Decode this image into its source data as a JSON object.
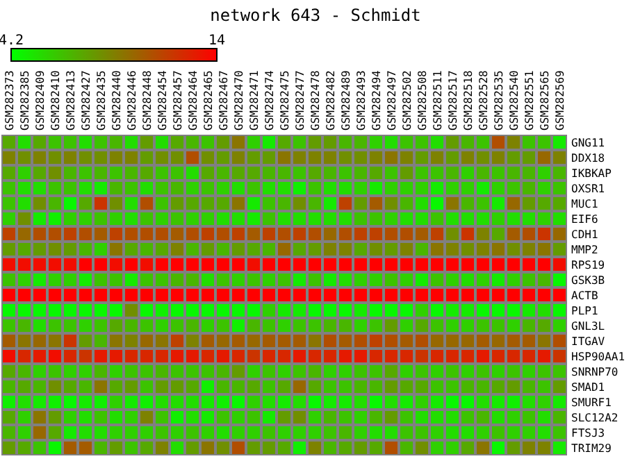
{
  "chart_data": {
    "type": "heatmap",
    "title": "network 643 - Schmidt",
    "categories": [
      "GSM282373",
      "GSM282385",
      "GSM282409",
      "GSM282410",
      "GSM282413",
      "GSM282427",
      "GSM282435",
      "GSM282440",
      "GSM282446",
      "GSM282448",
      "GSM282454",
      "GSM282457",
      "GSM282464",
      "GSM282465",
      "GSM282467",
      "GSM282470",
      "GSM282471",
      "GSM282474",
      "GSM282475",
      "GSM282477",
      "GSM282478",
      "GSM282482",
      "GSM282489",
      "GSM282493",
      "GSM282494",
      "GSM282497",
      "GSM282502",
      "GSM282508",
      "GSM282511",
      "GSM282517",
      "GSM282518",
      "GSM282528",
      "GSM282535",
      "GSM282540",
      "GSM282551",
      "GSM282565",
      "GSM282569"
    ],
    "y_categories": [
      "GNG11",
      "DDX18",
      "IKBKAP",
      "OXSR1",
      "MUC1",
      "EIF6",
      "CDH1",
      "MMP2",
      "RPS19",
      "GSK3B",
      "ACTB",
      "PLP1",
      "GNL3L",
      "ITGAV",
      "HSP90AA1",
      "SNRNP70",
      "SMAD1",
      "SMURF1",
      "SLC12A2",
      "FTSJ3",
      "TRIM29"
    ],
    "cells": [
      [
        7.5,
        5.5,
        7.5,
        6.5,
        6.5,
        5.5,
        6.5,
        7,
        5.5,
        8,
        5.5,
        7.5,
        7,
        6.5,
        8,
        9.5,
        6,
        5,
        7.5,
        6.5,
        8,
        8,
        7,
        7,
        6,
        5.5,
        6.5,
        6.5,
        5.5,
        8,
        7,
        6.5,
        11,
        9,
        6.5,
        6.5,
        5
      ],
      [
        9,
        8.5,
        9,
        8.5,
        9,
        8.5,
        8.5,
        9,
        9,
        8,
        8.5,
        8.5,
        11,
        8.5,
        8,
        9,
        8,
        8,
        9.5,
        9,
        9,
        9,
        8.5,
        8.5,
        9,
        9.5,
        9,
        8,
        9,
        8,
        9,
        8.5,
        9,
        8,
        8,
        10,
        9
      ],
      [
        7.5,
        6,
        7.5,
        8.5,
        7,
        6.5,
        7,
        6.5,
        7,
        7.5,
        6.5,
        6.5,
        5.5,
        7.5,
        7,
        7.5,
        7.5,
        7,
        7,
        6.5,
        7.5,
        7,
        6.5,
        7,
        7.5,
        6.5,
        8,
        6.5,
        6.5,
        7,
        6,
        7,
        6.5,
        7,
        7,
        6,
        7
      ],
      [
        6.5,
        5.5,
        5.5,
        6.5,
        6.5,
        5.5,
        5,
        7,
        6.5,
        5.5,
        6.5,
        7,
        6,
        6.5,
        6,
        5.5,
        6.5,
        5.5,
        5.5,
        4.8,
        6.5,
        5.5,
        5.5,
        6,
        5,
        6,
        6,
        6,
        5,
        6,
        6,
        5,
        6,
        6.5,
        7,
        6,
        6.5
      ],
      [
        6.5,
        5.5,
        8.5,
        7,
        4.5,
        7.5,
        12,
        8.5,
        5.5,
        11,
        6.5,
        8,
        7.5,
        7.5,
        7.5,
        9.5,
        5,
        6.5,
        7,
        8.5,
        7,
        5,
        11.5,
        8,
        10.5,
        8.5,
        7,
        5.5,
        4.5,
        9.5,
        7,
        6.5,
        5,
        10,
        8,
        7.5,
        7.5
      ],
      [
        6,
        8.5,
        5,
        4.8,
        6,
        6,
        6.5,
        6,
        5.5,
        6.5,
        6,
        6.5,
        6,
        6,
        5.5,
        5.5,
        5,
        6.5,
        5.5,
        5.5,
        5.5,
        5.5,
        5.5,
        6.5,
        6.5,
        6,
        5.5,
        5.5,
        6.5,
        5.5,
        5.5,
        5.5,
        6,
        5.5,
        5.5,
        6,
        5.5
      ],
      [
        11.5,
        10,
        11,
        11,
        11.5,
        11,
        10.5,
        11.5,
        11,
        11,
        11,
        10.5,
        11,
        11.5,
        11,
        11.5,
        10.5,
        11.5,
        11,
        11.5,
        11,
        10,
        11,
        11.5,
        11.5,
        11,
        11,
        10.5,
        11.5,
        8.5,
        12,
        9,
        7.5,
        10.5,
        11,
        12,
        10
      ],
      [
        8,
        7.5,
        8,
        8.5,
        8,
        7,
        6,
        9.5,
        7.5,
        7,
        7.5,
        9,
        7,
        8,
        7,
        8,
        7.5,
        7,
        10,
        7.5,
        8,
        9,
        9,
        7.5,
        8.5,
        8,
        9,
        7,
        9.5,
        9,
        8.5,
        9,
        9.5,
        8.5,
        9,
        9.5,
        8
      ],
      [
        13.5,
        13.5,
        13.5,
        13.5,
        13.5,
        14,
        14,
        13.5,
        14,
        13.5,
        14,
        14,
        14,
        14,
        14,
        14,
        13.5,
        14,
        14,
        14,
        14,
        14,
        14,
        14,
        14,
        14,
        14,
        14,
        14,
        14,
        14,
        14,
        14,
        14,
        14,
        14,
        13.5
      ],
      [
        6.5,
        6,
        5,
        6,
        6,
        5,
        6.5,
        6.5,
        5,
        6.5,
        6.5,
        7,
        7,
        5.5,
        6.5,
        6,
        6.5,
        6,
        6.5,
        5,
        6.5,
        5,
        5.5,
        6,
        6,
        6.5,
        6,
        5,
        6.5,
        6,
        5.5,
        6,
        5,
        6,
        6.5,
        7,
        4.5
      ],
      [
        14,
        14,
        14,
        14,
        14,
        14,
        14,
        14,
        14,
        14,
        14,
        14,
        14,
        14,
        14,
        14,
        14,
        14,
        14,
        14,
        14,
        14,
        14,
        14,
        14,
        14,
        14,
        14,
        14,
        14,
        14,
        14,
        14,
        14,
        14,
        14,
        14
      ],
      [
        4.5,
        4.5,
        4.5,
        4.5,
        4.5,
        4.5,
        4.5,
        4.5,
        8.5,
        4.5,
        4.8,
        4.5,
        4.5,
        4.5,
        4.5,
        4.5,
        4.5,
        6,
        5,
        5,
        4.5,
        4.5,
        4.5,
        5,
        4.5,
        4.5,
        4.5,
        6,
        4.5,
        5,
        5,
        4.5,
        4.5,
        4.5,
        5,
        5.5,
        4.5
      ],
      [
        6.5,
        7,
        5.5,
        6.5,
        6.5,
        6,
        6.5,
        7.5,
        7,
        6.5,
        6,
        6.5,
        7,
        6,
        6.5,
        4.8,
        7,
        6.5,
        6,
        6.5,
        6.5,
        7,
        7,
        6,
        6.5,
        8,
        6,
        7.5,
        6.5,
        6,
        6,
        6.5,
        6.5,
        6,
        7,
        7.5,
        6
      ],
      [
        10.5,
        9.5,
        10,
        9.5,
        12,
        8,
        7,
        9.5,
        9,
        10,
        9.5,
        11.5,
        9,
        10.5,
        10,
        10.5,
        10,
        10.5,
        10.5,
        10.5,
        9.5,
        11,
        10.5,
        11,
        11.5,
        11,
        10.5,
        11,
        10,
        10,
        10,
        10.5,
        10,
        10.5,
        10.5,
        9.5,
        11
      ],
      [
        13.5,
        12.5,
        13,
        13.5,
        12.5,
        12,
        13,
        13,
        12.5,
        12.5,
        12.5,
        13,
        13,
        12.5,
        13,
        12.5,
        12,
        12.5,
        12.5,
        13,
        12.5,
        12.5,
        13,
        13,
        12.5,
        12.5,
        12.5,
        12,
        12.5,
        12.5,
        12.5,
        13,
        12.5,
        12.5,
        12.5,
        13,
        12
      ],
      [
        7.5,
        7,
        6,
        6.5,
        6,
        6,
        7,
        6,
        6.5,
        6.5,
        7,
        6.5,
        6.5,
        6.5,
        7,
        8,
        6,
        6.5,
        6,
        6.5,
        7,
        6,
        6,
        6.5,
        6.5,
        7.5,
        6,
        6.5,
        6,
        6.5,
        6,
        6.5,
        6,
        6.5,
        6,
        6.5,
        6.5
      ],
      [
        7,
        7.5,
        7,
        8.5,
        7.5,
        7,
        9.5,
        7.5,
        8,
        6.5,
        8,
        8,
        7.5,
        4.8,
        7,
        7,
        7.5,
        6.5,
        7.5,
        10,
        7.5,
        6.5,
        6.5,
        7,
        7,
        8,
        7.5,
        7.5,
        6.5,
        6.5,
        7,
        7,
        7.5,
        8,
        7,
        6.5,
        8
      ],
      [
        4.8,
        5.5,
        5,
        4.8,
        4.5,
        5,
        4.8,
        6,
        5,
        4.8,
        5.5,
        5.5,
        5.5,
        5,
        4.8,
        4.5,
        6,
        5.5,
        5,
        5.5,
        4.5,
        5,
        5,
        5.5,
        4.5,
        5.5,
        5,
        6,
        5,
        4.5,
        4.5,
        5.5,
        5,
        4.8,
        5.5,
        6,
        5
      ],
      [
        7.5,
        6,
        9.5,
        8,
        6,
        5.5,
        6.5,
        5.5,
        6,
        9,
        6.5,
        4.8,
        5.5,
        5,
        6.5,
        6,
        6.5,
        5,
        8,
        8.5,
        6,
        7,
        6.5,
        6,
        7,
        8,
        6.5,
        5.5,
        5.5,
        5.5,
        6.5,
        7,
        5.5,
        6,
        6.5,
        5.5,
        7
      ],
      [
        7,
        6,
        10,
        7.5,
        5,
        5.5,
        5.5,
        6,
        6,
        6,
        6.5,
        6,
        6.5,
        6,
        5.5,
        6,
        6,
        6.5,
        6,
        6,
        6,
        6.5,
        7,
        6,
        5.5,
        5.5,
        6.5,
        6.5,
        6,
        5.5,
        5.5,
        6,
        6.5,
        6,
        6,
        5.5,
        6.5
      ],
      [
        8,
        7.5,
        6.5,
        4.5,
        10.5,
        10.5,
        7,
        8,
        6.5,
        7.5,
        9,
        5.5,
        8,
        9.5,
        8.5,
        11,
        8,
        8,
        7.5,
        4.8,
        9,
        7,
        7.5,
        8,
        7.5,
        11,
        7,
        8.5,
        6,
        6,
        7.5,
        9.5,
        4.5,
        8,
        9,
        9,
        5
      ]
    ],
    "clim": [
      4.2,
      14
    ],
    "cticks": [
      4.2,
      14
    ]
  }
}
